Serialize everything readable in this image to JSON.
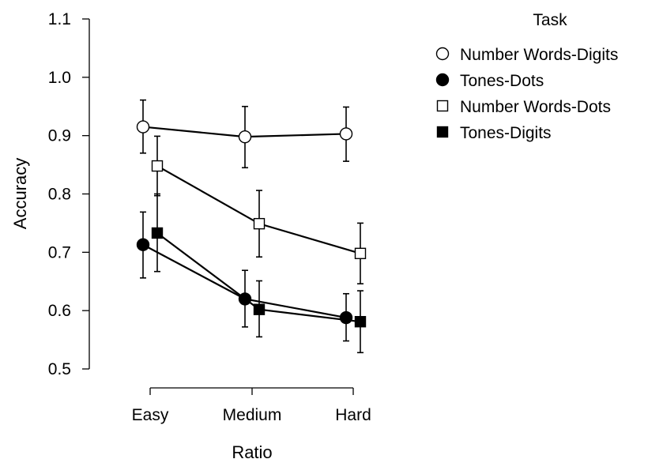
{
  "chart_data": {
    "type": "line",
    "title": "",
    "xlabel": "Ratio",
    "ylabel": "Accuracy",
    "categories": [
      "Easy",
      "Medium",
      "Hard"
    ],
    "ylim": [
      0.5,
      1.1
    ],
    "yticks": [
      "0.5",
      "0.6",
      "0.7",
      "0.8",
      "0.9",
      "1.0",
      "1.1"
    ],
    "grid": false,
    "legend": {
      "title": "Task",
      "placement": "top-right"
    },
    "series": [
      {
        "name": "Number Words-Digits",
        "marker": "circle",
        "fill": "#ffffff",
        "values": [
          0.915,
          0.898,
          0.903
        ],
        "err_low": [
          0.87,
          0.845,
          0.856
        ],
        "err_high": [
          0.961,
          0.95,
          0.949
        ]
      },
      {
        "name": "Tones-Dots",
        "marker": "circle",
        "fill": "#000000",
        "values": [
          0.713,
          0.62,
          0.588
        ],
        "err_low": [
          0.656,
          0.572,
          0.548
        ],
        "err_high": [
          0.769,
          0.669,
          0.629
        ]
      },
      {
        "name": "Number Words-Dots",
        "marker": "square",
        "fill": "#ffffff",
        "values": [
          0.848,
          0.749,
          0.698
        ],
        "err_low": [
          0.797,
          0.692,
          0.646
        ],
        "err_high": [
          0.899,
          0.806,
          0.75
        ]
      },
      {
        "name": "Tones-Digits",
        "marker": "square",
        "fill": "#000000",
        "values": [
          0.733,
          0.602,
          0.581
        ],
        "err_low": [
          0.667,
          0.555,
          0.528
        ],
        "err_high": [
          0.8,
          0.651,
          0.634
        ]
      }
    ]
  }
}
